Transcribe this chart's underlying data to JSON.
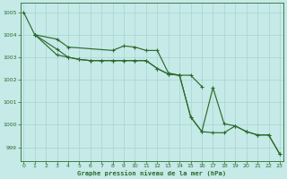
{
  "title": "Graphe pression niveau de la mer (hPa)",
  "bg_color": "#c5eae8",
  "grid_color": "#a8d4d0",
  "line_color": "#2d6b2d",
  "ylim": [
    998.4,
    1005.4
  ],
  "xlim": [
    -0.3,
    23.3
  ],
  "yticks": [
    999,
    1000,
    1001,
    1002,
    1003,
    1004,
    1005
  ],
  "xticks": [
    0,
    1,
    2,
    3,
    4,
    5,
    6,
    7,
    8,
    9,
    10,
    11,
    12,
    13,
    14,
    15,
    16,
    17,
    18,
    19,
    20,
    21,
    22,
    23
  ],
  "s1_x": [
    0,
    1,
    3,
    4,
    8,
    9,
    10,
    11,
    12,
    13,
    14,
    15,
    16
  ],
  "s1_y": [
    1005.0,
    1004.0,
    1003.8,
    1003.45,
    1003.3,
    1003.5,
    1003.45,
    1003.3,
    1003.3,
    1002.3,
    1002.2,
    1002.2,
    1001.7
  ],
  "s2_x": [
    1,
    3,
    4,
    5,
    6,
    7,
    8,
    9,
    10,
    11,
    12,
    13,
    14,
    15,
    16,
    17,
    18,
    19,
    20,
    21,
    22,
    23
  ],
  "s2_y": [
    1004.0,
    1003.1,
    1003.0,
    1002.9,
    1002.85,
    1002.85,
    1002.85,
    1002.85,
    1002.85,
    1002.85,
    1002.5,
    1002.25,
    1002.2,
    1000.35,
    999.7,
    1001.65,
    1000.05,
    999.95,
    999.7,
    999.55,
    999.55,
    998.7
  ],
  "s3_x": [
    1,
    3,
    4,
    5,
    6,
    7,
    8,
    9,
    10,
    11,
    12,
    13,
    14,
    15,
    16,
    17,
    18,
    19,
    20,
    21,
    22,
    23
  ],
  "s3_y": [
    1004.0,
    1003.35,
    1003.0,
    1002.9,
    1002.85,
    1002.85,
    1002.85,
    1002.85,
    1002.85,
    1002.85,
    1002.5,
    1002.25,
    1002.2,
    1000.35,
    999.7,
    999.65,
    999.65,
    999.95,
    999.7,
    999.55,
    999.55,
    998.7
  ]
}
